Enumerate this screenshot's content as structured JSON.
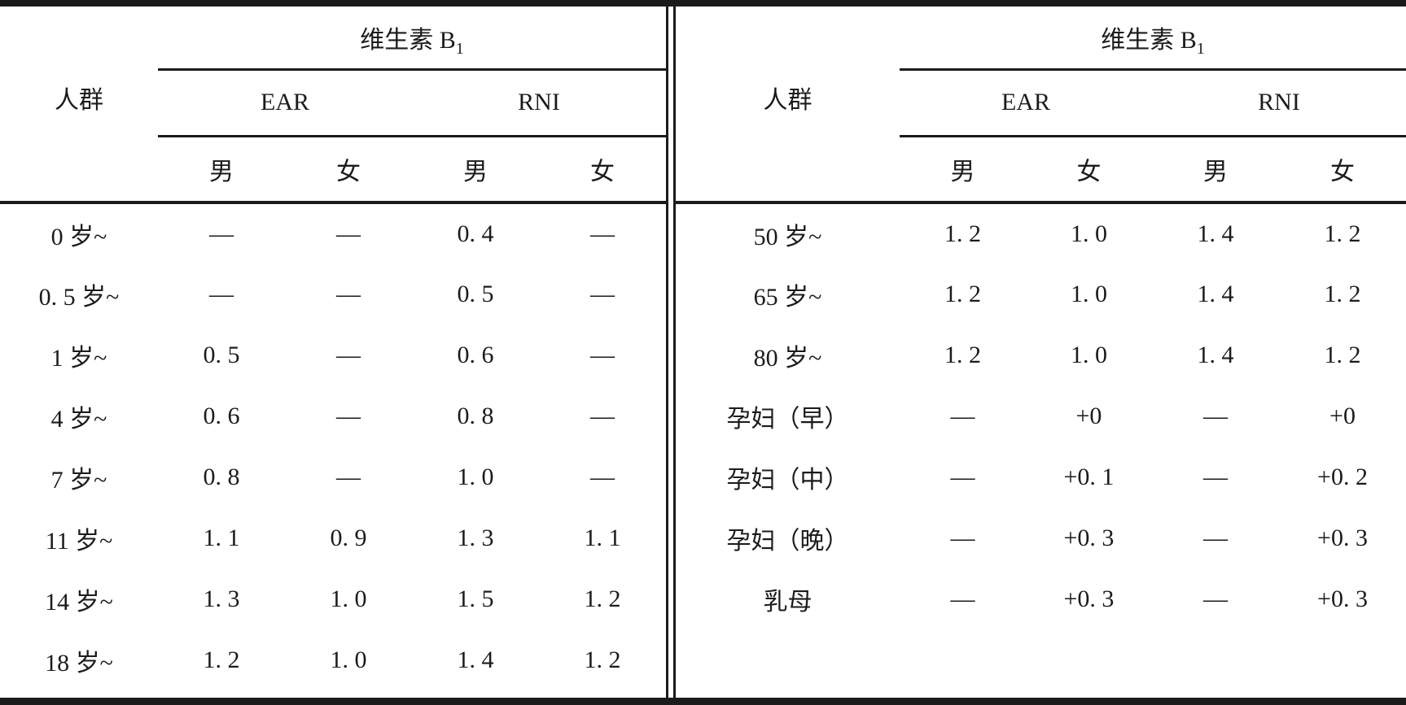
{
  "page": {
    "background": "#ffffff",
    "text_color": "#1b1b1b",
    "rule_color": "#1b1b1b"
  },
  "left_table": {
    "vitamin_label": "维生素 B",
    "vitamin_subscript": "1",
    "population_label": "人群",
    "ear_label": "EAR",
    "rni_label": "RNI",
    "male_label": "男",
    "female_label": "女",
    "rows": [
      {
        "label": "0 岁~",
        "values": [
          "—",
          "—",
          "0. 4",
          "—"
        ]
      },
      {
        "label": "0. 5 岁~",
        "values": [
          "—",
          "—",
          "0. 5",
          "—"
        ]
      },
      {
        "label": "1 岁~",
        "values": [
          "0. 5",
          "—",
          "0. 6",
          "—"
        ]
      },
      {
        "label": "4 岁~",
        "values": [
          "0. 6",
          "—",
          "0. 8",
          "—"
        ]
      },
      {
        "label": "7 岁~",
        "values": [
          "0. 8",
          "—",
          "1. 0",
          "—"
        ]
      },
      {
        "label": "11 岁~",
        "values": [
          "1. 1",
          "0. 9",
          "1. 3",
          "1. 1"
        ]
      },
      {
        "label": "14 岁~",
        "values": [
          "1. 3",
          "1. 0",
          "1. 5",
          "1. 2"
        ]
      },
      {
        "label": "18 岁~",
        "values": [
          "1. 2",
          "1. 0",
          "1. 4",
          "1. 2"
        ]
      }
    ]
  },
  "right_table": {
    "vitamin_label": "维生素 B",
    "vitamin_subscript": "1",
    "population_label": "人群",
    "ear_label": "EAR",
    "rni_label": "RNI",
    "male_label": "男",
    "female_label": "女",
    "rows": [
      {
        "label": "50 岁~",
        "values": [
          "1. 2",
          "1. 0",
          "1. 4",
          "1. 2"
        ]
      },
      {
        "label": "65 岁~",
        "values": [
          "1. 2",
          "1. 0",
          "1. 4",
          "1. 2"
        ]
      },
      {
        "label": "80 岁~",
        "values": [
          "1. 2",
          "1. 0",
          "1. 4",
          "1. 2"
        ]
      },
      {
        "label": "孕妇（早）",
        "values": [
          "—",
          "+0",
          "—",
          "+0"
        ]
      },
      {
        "label": "孕妇（中）",
        "values": [
          "—",
          "+0. 1",
          "—",
          "+0. 2"
        ]
      },
      {
        "label": "孕妇（晚）",
        "values": [
          "—",
          "+0. 3",
          "—",
          "+0. 3"
        ]
      },
      {
        "label": "乳母",
        "values": [
          "—",
          "+0. 3",
          "—",
          "+0. 3"
        ]
      }
    ]
  }
}
